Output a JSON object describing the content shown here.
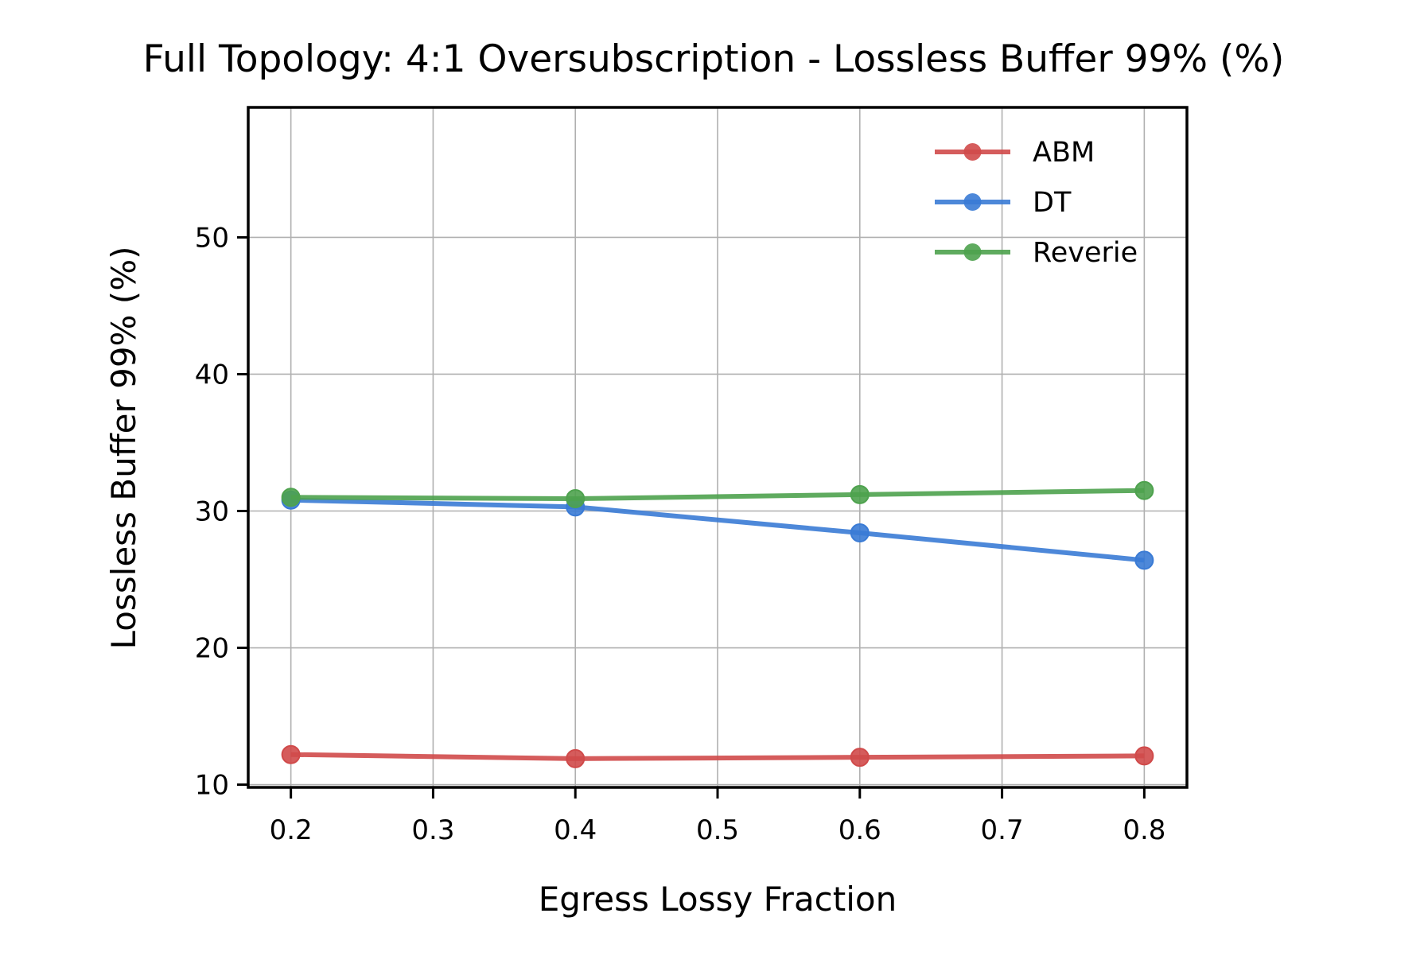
{
  "chart_data": {
    "type": "line",
    "title": "Full Topology: 4:1 Oversubscription - Lossless Buffer 99% (%)",
    "xlabel": "Egress Lossy Fraction",
    "ylabel": "Lossless Buffer 99% (%)",
    "xlim": [
      0.17,
      0.83
    ],
    "ylim": [
      9.8,
      59.5
    ],
    "xticks": [
      0.2,
      0.3,
      0.4,
      0.5,
      0.6,
      0.7,
      0.8
    ],
    "xtick_labels": [
      "0.2",
      "0.3",
      "0.4",
      "0.5",
      "0.6",
      "0.7",
      "0.8"
    ],
    "yticks": [
      10,
      20,
      30,
      40,
      50
    ],
    "ytick_labels": [
      "10",
      "20",
      "30",
      "40",
      "50"
    ],
    "grid": true,
    "legend_position": "top-right",
    "x": [
      0.2,
      0.4,
      0.6,
      0.8
    ],
    "series": [
      {
        "name": "ABM",
        "color": "#d04a4a",
        "values": [
          12.2,
          11.9,
          12.0,
          12.1
        ]
      },
      {
        "name": "DT",
        "color": "#3a7bd5",
        "values": [
          30.8,
          30.3,
          28.4,
          26.4
        ]
      },
      {
        "name": "Reverie",
        "color": "#4ea24e",
        "values": [
          31.0,
          30.9,
          31.2,
          31.5
        ]
      }
    ]
  }
}
